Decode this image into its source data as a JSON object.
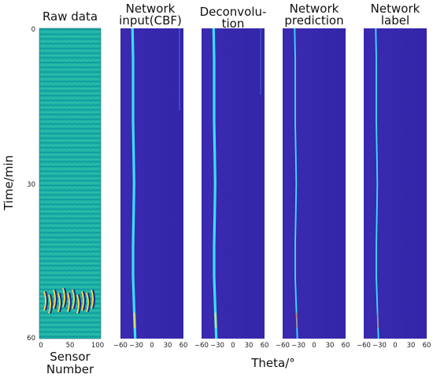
{
  "figure": {
    "y_axis_label": "Time/min",
    "y_ticks": [
      "0",
      "30",
      "60"
    ],
    "x_axis_label": "Theta/°",
    "theta_ticks": [
      "−60",
      "−30",
      "0",
      "30",
      "60"
    ],
    "raw_x_ticks": [
      "0",
      "50",
      "100"
    ],
    "raw_x_label_line1": "Sensor",
    "raw_x_label_line2": "Number"
  },
  "panels": [
    {
      "title_lines": [
        "Raw data"
      ]
    },
    {
      "title_lines": [
        "Network",
        "input(CBF)"
      ]
    },
    {
      "title_lines": [
        "Deconvolu-",
        "tion"
      ]
    },
    {
      "title_lines": [
        "Network",
        "prediction"
      ]
    },
    {
      "title_lines": [
        "Network",
        "label"
      ]
    }
  ],
  "colors": {
    "raw_background": "#1ab3a8",
    "map_background": "#3a2ab0",
    "track_cyan": "#38e0ff",
    "track_yellow": "#f6e04a",
    "track_red": "#f2604a"
  },
  "chart_data": {
    "type": "heatmap",
    "y_label": "Time/min",
    "y_range": [
      0,
      60
    ],
    "theta_range": [
      -60,
      60
    ],
    "sensor_range": [
      0,
      100
    ],
    "source_track_theta_deg": [
      [
        0,
        -37
      ],
      [
        6,
        -36
      ],
      [
        12,
        -36
      ],
      [
        18,
        -36
      ],
      [
        24,
        -35
      ],
      [
        30,
        -34
      ],
      [
        36,
        -35
      ],
      [
        42,
        -36
      ],
      [
        48,
        -36
      ],
      [
        54,
        -34
      ],
      [
        60,
        -32
      ]
    ]
  }
}
